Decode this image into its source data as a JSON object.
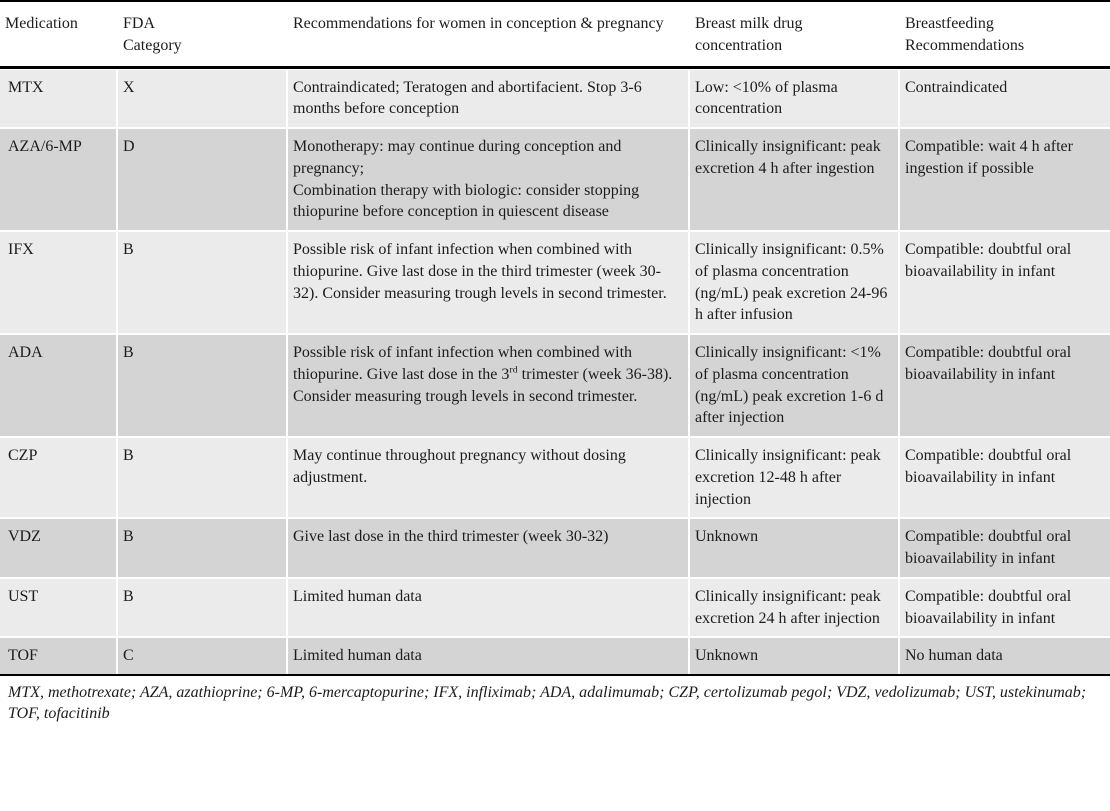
{
  "colors": {
    "row_light": "#ebebeb",
    "row_dark": "#d4d4d4",
    "rule": "#000000"
  },
  "table": {
    "columns": [
      "Medication",
      "FDA Category",
      "Recommendations for women in conception & pregnancy",
      "Breast milk drug concentration",
      "Breastfeeding Recommendations"
    ],
    "rows": [
      {
        "medication": "MTX",
        "fda": "X",
        "shade": "light",
        "recommendation": [
          {
            "text": "Contraindicated; Teratogen and abortifacient. Stop 3-6 months before conception"
          }
        ],
        "breast_milk": "Low: <10% of plasma concentration",
        "breastfeeding": "Contraindicated"
      },
      {
        "medication": "AZA/6-MP",
        "fda": "D",
        "shade": "dark",
        "recommendation": [
          {
            "text": "Monotherapy: may continue during conception and pregnancy;"
          },
          {
            "br": true
          },
          {
            "text": "Combination therapy with biologic: consider stopping thiopurine before conception in quiescent disease"
          }
        ],
        "breast_milk": "Clinically insignificant: peak excretion 4 h after ingestion",
        "breastfeeding": "Compatible: wait 4 h after ingestion if possible"
      },
      {
        "medication": "IFX",
        "fda": "B",
        "shade": "light",
        "recommendation": [
          {
            "text": "Possible risk of infant infection when combined with thiopurine. Give last dose in the third trimester (week 30-32). Consider measuring trough levels in second trimester."
          }
        ],
        "breast_milk": "Clinically insignificant: 0.5% of plasma concentration (ng/mL) peak excretion 24-96 h after infusion",
        "breastfeeding": "Compatible: doubtful oral bioavailability in infant"
      },
      {
        "medication": "ADA",
        "fda": "B",
        "shade": "dark",
        "recommendation": [
          {
            "text": "Possible risk of infant infection when combined with thiopurine. Give last dose in the 3"
          },
          {
            "sup": "rd"
          },
          {
            "text": " trimester (week 36-38). Consider measuring trough levels in second trimester."
          }
        ],
        "breast_milk": "Clinically insignificant: <1% of plasma concentration (ng/mL) peak excretion 1-6 d after injection",
        "breastfeeding": "Compatible: doubtful oral bioavailability in infant"
      },
      {
        "medication": "CZP",
        "fda": "B",
        "shade": "light",
        "recommendation": [
          {
            "text": "May continue throughout pregnancy without dosing adjustment."
          }
        ],
        "breast_milk": "Clinically insignificant: peak excretion 12-48 h after injection",
        "breastfeeding": "Compatible: doubtful oral bioavailability in infant"
      },
      {
        "medication": "VDZ",
        "fda": "B",
        "shade": "dark",
        "recommendation": [
          {
            "text": "Give last dose in the third trimester (week 30-32)"
          }
        ],
        "breast_milk": "Unknown",
        "breastfeeding": "Compatible: doubtful oral bioavailability in infant"
      },
      {
        "medication": "UST",
        "fda": "B",
        "shade": "light",
        "recommendation": [
          {
            "text": "Limited human data"
          }
        ],
        "breast_milk": "Clinically insignificant: peak excretion 24 h after injection",
        "breastfeeding": "Compatible: doubtful oral bioavailability in infant"
      },
      {
        "medication": "TOF",
        "fda": "C",
        "shade": "dark",
        "recommendation": [
          {
            "text": "Limited human data"
          }
        ],
        "breast_milk": "Unknown",
        "breastfeeding": "No human data"
      }
    ]
  },
  "footnote": "MTX, methotrexate; AZA, azathioprine; 6-MP, 6-mercaptopurine; IFX, infliximab; ADA, adalimumab; CZP, certolizumab pegol; VDZ, vedolizumab; UST, ustekinumab; TOF, tofacitinib"
}
